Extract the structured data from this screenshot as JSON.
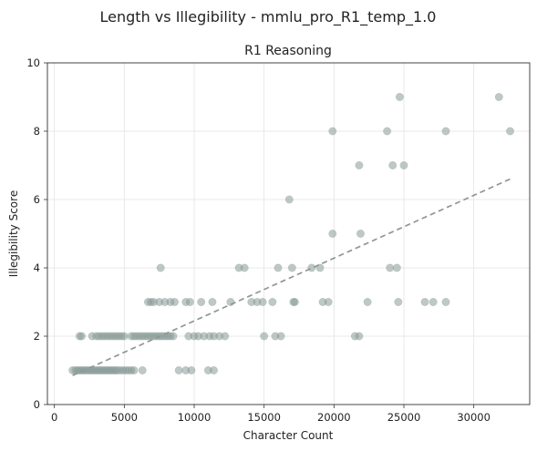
{
  "figure": {
    "suptitle": "Length vs Illegibility - mmlu_pro_R1_temp_1.0"
  },
  "chart_data": {
    "type": "scatter",
    "title": "R1 Reasoning",
    "xlabel": "Character Count",
    "ylabel": "Illegibility Score",
    "xlim": [
      -500,
      34000
    ],
    "ylim": [
      0,
      10
    ],
    "xticks": [
      0,
      5000,
      10000,
      15000,
      20000,
      25000,
      30000
    ],
    "xtick_labels": [
      "0",
      "5000",
      "10000",
      "15000",
      "20000",
      "25000",
      "30000"
    ],
    "yticks": [
      0,
      2,
      4,
      6,
      8,
      10
    ],
    "ytick_labels": [
      "0",
      "2",
      "4",
      "6",
      "8",
      "10"
    ],
    "grid": true,
    "point_color": "#889b97",
    "trend_color": "#8f9795",
    "trendline": {
      "x": [
        1300,
        32600
      ],
      "y": [
        0.85,
        6.6
      ]
    },
    "points": [
      [
        1300,
        1
      ],
      [
        1500,
        1
      ],
      [
        1650,
        1
      ],
      [
        1800,
        1
      ],
      [
        1950,
        1
      ],
      [
        2100,
        1
      ],
      [
        2250,
        1
      ],
      [
        2400,
        1
      ],
      [
        2550,
        1
      ],
      [
        2700,
        1
      ],
      [
        2850,
        1
      ],
      [
        3000,
        1
      ],
      [
        3150,
        1
      ],
      [
        3300,
        1
      ],
      [
        3450,
        1
      ],
      [
        3600,
        1
      ],
      [
        3750,
        1
      ],
      [
        3900,
        1
      ],
      [
        4050,
        1
      ],
      [
        4200,
        1
      ],
      [
        4350,
        1
      ],
      [
        4500,
        1
      ],
      [
        4700,
        1
      ],
      [
        4900,
        1
      ],
      [
        5100,
        1
      ],
      [
        5300,
        1
      ],
      [
        5500,
        1
      ],
      [
        5700,
        1
      ],
      [
        6300,
        1
      ],
      [
        8900,
        1
      ],
      [
        9400,
        1
      ],
      [
        9800,
        1
      ],
      [
        11000,
        1
      ],
      [
        11400,
        1
      ],
      [
        1800,
        2
      ],
      [
        1950,
        2
      ],
      [
        2700,
        2
      ],
      [
        3000,
        2
      ],
      [
        3200,
        2
      ],
      [
        3400,
        2
      ],
      [
        3600,
        2
      ],
      [
        3800,
        2
      ],
      [
        4000,
        2
      ],
      [
        4200,
        2
      ],
      [
        4400,
        2
      ],
      [
        4600,
        2
      ],
      [
        4800,
        2
      ],
      [
        5000,
        2
      ],
      [
        5500,
        2
      ],
      [
        5700,
        2
      ],
      [
        5900,
        2
      ],
      [
        6100,
        2
      ],
      [
        6300,
        2
      ],
      [
        6500,
        2
      ],
      [
        6700,
        2
      ],
      [
        6900,
        2
      ],
      [
        7100,
        2
      ],
      [
        7300,
        2
      ],
      [
        7500,
        2
      ],
      [
        7700,
        2
      ],
      [
        7900,
        2
      ],
      [
        8100,
        2
      ],
      [
        8300,
        2
      ],
      [
        8500,
        2
      ],
      [
        9600,
        2
      ],
      [
        10000,
        2
      ],
      [
        10300,
        2
      ],
      [
        10700,
        2
      ],
      [
        11100,
        2
      ],
      [
        11400,
        2
      ],
      [
        11800,
        2
      ],
      [
        12200,
        2
      ],
      [
        15000,
        2
      ],
      [
        15800,
        2
      ],
      [
        16200,
        2
      ],
      [
        21500,
        2
      ],
      [
        21800,
        2
      ],
      [
        6700,
        3
      ],
      [
        6900,
        3
      ],
      [
        7100,
        3
      ],
      [
        7500,
        3
      ],
      [
        7900,
        3
      ],
      [
        8300,
        3
      ],
      [
        8600,
        3
      ],
      [
        9400,
        3
      ],
      [
        9700,
        3
      ],
      [
        10500,
        3
      ],
      [
        11300,
        3
      ],
      [
        12600,
        3
      ],
      [
        14100,
        3
      ],
      [
        14500,
        3
      ],
      [
        14900,
        3
      ],
      [
        15600,
        3
      ],
      [
        17100,
        3
      ],
      [
        17200,
        3
      ],
      [
        19200,
        3
      ],
      [
        19600,
        3
      ],
      [
        22400,
        3
      ],
      [
        24600,
        3
      ],
      [
        26500,
        3
      ],
      [
        27100,
        3
      ],
      [
        28000,
        3
      ],
      [
        7600,
        4
      ],
      [
        13200,
        4
      ],
      [
        13600,
        4
      ],
      [
        16000,
        4
      ],
      [
        17000,
        4
      ],
      [
        18400,
        4
      ],
      [
        19000,
        4
      ],
      [
        24000,
        4
      ],
      [
        24500,
        4
      ],
      [
        19900,
        5
      ],
      [
        21900,
        5
      ],
      [
        16800,
        6
      ],
      [
        21800,
        7
      ],
      [
        24200,
        7
      ],
      [
        25000,
        7
      ],
      [
        19900,
        8
      ],
      [
        23800,
        8
      ],
      [
        28000,
        8
      ],
      [
        32600,
        8
      ],
      [
        24700,
        9
      ],
      [
        31800,
        9
      ]
    ]
  }
}
